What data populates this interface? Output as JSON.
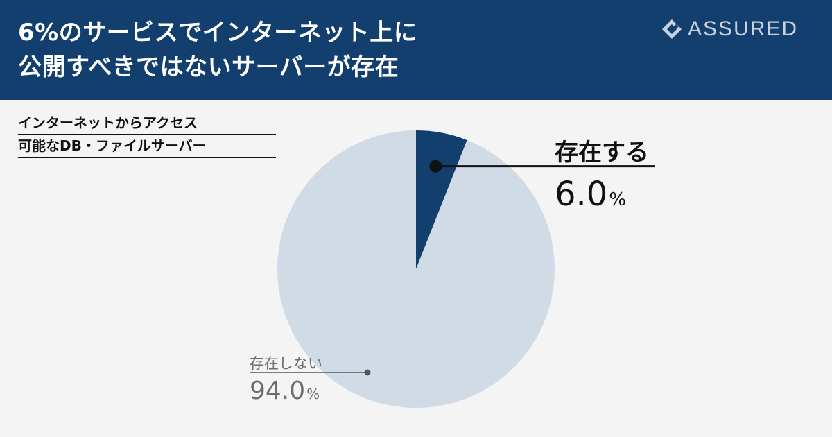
{
  "header": {
    "title_line1": "6%のサービスでインターネット上に",
    "title_line2": "公開すべきではないサーバーが存在",
    "logo_text": "ASSURED",
    "background_color": "#123f6e"
  },
  "subtitle": {
    "line1": "インターネットからアクセス",
    "line2": "可能なDB・ファイルサーバー"
  },
  "chart_data": {
    "type": "pie",
    "slices": [
      {
        "label": "存在する",
        "value": 6.0,
        "value_label": "6.0",
        "unit": "%",
        "color": "#123f6e"
      },
      {
        "label": "存在しない",
        "value": 94.0,
        "value_label": "94.0",
        "unit": "%",
        "color": "#d0dbe6"
      }
    ]
  }
}
